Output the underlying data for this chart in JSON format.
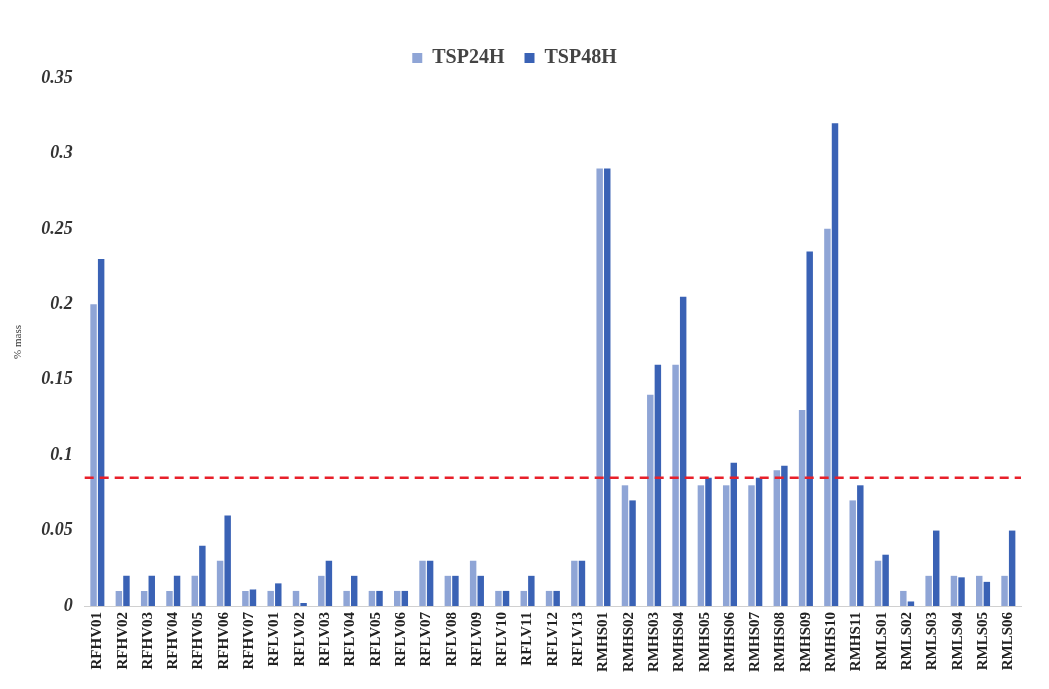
{
  "chart_data": {
    "type": "bar",
    "ylabel": "% mass",
    "categories": [
      "RFHV01",
      "RFHV02",
      "RFHV03",
      "RFHV04",
      "RFHV05",
      "RFHV06",
      "RFHV07",
      "RFLV01",
      "RFLV02",
      "RFLV03",
      "RFLV04",
      "RFLV05",
      "RFLV06",
      "RFLV07",
      "RFLV08",
      "RFLV09",
      "RFLV10",
      "RFLV11",
      "RFLV12",
      "RFLV13",
      "RMHS01",
      "RMHS02",
      "RMHS03",
      "RMHS04",
      "RMHS05",
      "RMHS06",
      "RMHS07",
      "RMHS08",
      "RMHS09",
      "RMHS10",
      "RMHS11",
      "RMLS01",
      "RMLS02",
      "RMLS03",
      "RMLS04",
      "RMLS05",
      "RMLS06"
    ],
    "series": [
      {
        "name": "TSP24H",
        "color": "#8fa5d6",
        "values": [
          0.2,
          0.01,
          0.01,
          0.01,
          0.02,
          0.03,
          0.01,
          0.01,
          0.01,
          0.02,
          0.01,
          0.01,
          0.01,
          0.03,
          0.02,
          0.03,
          0.01,
          0.01,
          0.01,
          0.03,
          0.29,
          0.08,
          0.14,
          0.16,
          0.08,
          0.08,
          0.08,
          0.09,
          0.13,
          0.25,
          0.07,
          0.03,
          0.01,
          0.02,
          0.02,
          0.02,
          0.02
        ]
      },
      {
        "name": "TSP48H",
        "color": "#3a62b5",
        "values": [
          0.23,
          0.02,
          0.02,
          0.02,
          0.04,
          0.06,
          0.011,
          0.015,
          0.002,
          0.03,
          0.02,
          0.01,
          0.01,
          0.03,
          0.02,
          0.02,
          0.01,
          0.02,
          0.01,
          0.03,
          0.29,
          0.07,
          0.16,
          0.205,
          0.085,
          0.095,
          0.085,
          0.093,
          0.235,
          0.32,
          0.08,
          0.034,
          0.003,
          0.05,
          0.019,
          0.016,
          0.05
        ]
      }
    ],
    "ylim": [
      0,
      0.35
    ],
    "yticks": [
      0,
      0.05,
      0.1,
      0.15,
      0.2,
      0.25,
      0.3,
      0.35
    ],
    "ref_lines": [
      {
        "axis": "y",
        "value": 0.085,
        "color": "#e8202a",
        "line_style": "dashed"
      }
    ],
    "grid": false,
    "legend": "top"
  }
}
